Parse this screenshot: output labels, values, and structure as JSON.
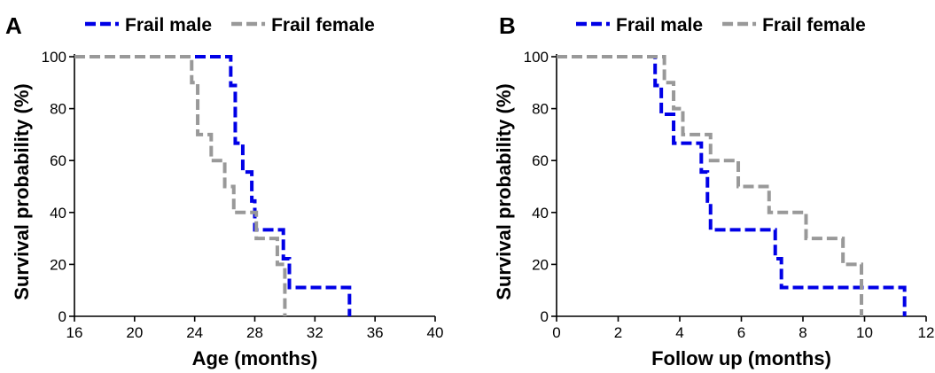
{
  "chart_data": [
    {
      "panel_label": "A",
      "type": "line",
      "step": true,
      "xlabel": "Age (months)",
      "ylabel": "Survival probability (%)",
      "xlim": [
        16,
        40
      ],
      "ylim": [
        0,
        100
      ],
      "xticks": [
        16,
        20,
        24,
        28,
        32,
        36,
        40
      ],
      "yticks": [
        0,
        20,
        40,
        60,
        80,
        100
      ],
      "legend_position": "top",
      "series": [
        {
          "name": "Frail male",
          "color": "#0000e6",
          "x": [
            16,
            26.4,
            26.7,
            27.2,
            27.8,
            28.0,
            29.9,
            30.3,
            34.3
          ],
          "y": [
            100,
            88.9,
            66.7,
            55.6,
            44.4,
            33.3,
            22.2,
            11.1,
            0
          ]
        },
        {
          "name": "Frail female",
          "color": "#999999",
          "x": [
            16,
            23.8,
            24.2,
            25.1,
            26.0,
            26.6,
            27.3,
            28.1,
            29.5,
            30.0
          ],
          "y": [
            100,
            90,
            70,
            60,
            50,
            40,
            40,
            30,
            20,
            0
          ]
        }
      ]
    },
    {
      "panel_label": "B",
      "type": "line",
      "step": true,
      "xlabel": "Follow up (months)",
      "ylabel": "Survival probability (%)",
      "xlim": [
        0,
        12
      ],
      "ylim": [
        0,
        100
      ],
      "xticks": [
        0,
        2,
        4,
        6,
        8,
        10,
        12
      ],
      "yticks": [
        0,
        20,
        40,
        60,
        80,
        100
      ],
      "legend_position": "top",
      "series": [
        {
          "name": "Frail male",
          "color": "#0000e6",
          "x": [
            0,
            3.2,
            3.4,
            3.8,
            4.7,
            4.9,
            5.0,
            7.1,
            7.3,
            11.3
          ],
          "y": [
            100,
            88.9,
            77.8,
            66.7,
            55.6,
            44.4,
            33.3,
            22.2,
            11.1,
            0
          ]
        },
        {
          "name": "Frail female",
          "color": "#999999",
          "x": [
            0,
            3.5,
            3.8,
            4.1,
            5.0,
            5.9,
            6.9,
            8.1,
            9.3,
            9.9
          ],
          "y": [
            100,
            90,
            80,
            70,
            60,
            50,
            40,
            30,
            20,
            0
          ]
        }
      ]
    }
  ]
}
